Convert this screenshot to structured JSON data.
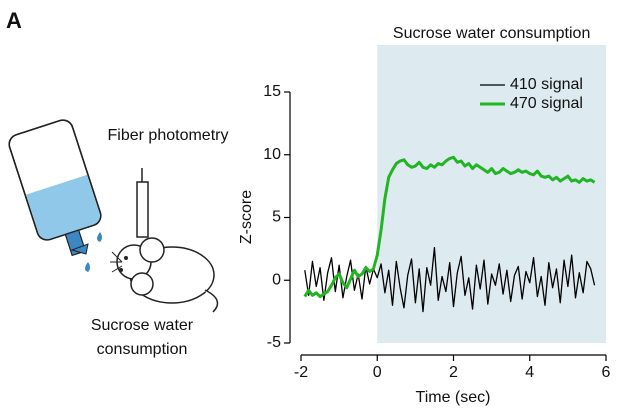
{
  "panel_label": "A",
  "illustration": {
    "fiber_label": "Fiber photometry",
    "caption_lines": [
      "Sucrose water",
      "consumption"
    ]
  },
  "chart_data": {
    "type": "line",
    "x_label": "Time (sec)",
    "y_label": "Z-score",
    "xlim": [
      -2,
      6
    ],
    "xticks": [
      -2,
      0,
      2,
      4,
      6
    ],
    "ylim": [
      -5,
      15
    ],
    "yticks": [
      -5,
      0,
      5,
      10,
      15
    ],
    "legend": "upper right",
    "shade": {
      "from": 0,
      "to": 6,
      "color": "#ddebf1",
      "label": "Sucrose water consumption"
    },
    "x": [
      -1.9,
      -1.8,
      -1.7,
      -1.6,
      -1.5,
      -1.4,
      -1.3,
      -1.2,
      -1.1,
      -1.0,
      -0.9,
      -0.8,
      -0.7,
      -0.6,
      -0.5,
      -0.4,
      -0.3,
      -0.2,
      -0.1,
      0,
      0.1,
      0.2,
      0.3,
      0.4,
      0.5,
      0.6,
      0.7,
      0.8,
      0.9,
      1.0,
      1.1,
      1.2,
      1.3,
      1.4,
      1.5,
      1.6,
      1.7,
      1.8,
      1.9,
      2.0,
      2.1,
      2.2,
      2.3,
      2.4,
      2.5,
      2.6,
      2.7,
      2.8,
      2.9,
      3.0,
      3.1,
      3.2,
      3.3,
      3.4,
      3.5,
      3.6,
      3.7,
      3.8,
      3.9,
      4.0,
      4.1,
      4.2,
      4.3,
      4.4,
      4.5,
      4.6,
      4.7,
      4.8,
      4.9,
      5.0,
      5.1,
      5.2,
      5.3,
      5.4,
      5.5,
      5.6,
      5.7
    ],
    "series": [
      {
        "name": "410 signal",
        "color": "#000000",
        "width": 1.3,
        "values": [
          0.8,
          -1.2,
          1.5,
          -0.5,
          1.0,
          -1.6,
          0.6,
          1.8,
          -0.9,
          1.2,
          -1.4,
          0.3,
          1.6,
          -0.8,
          0.5,
          -1.5,
          1.1,
          -0.3,
          0.9,
          0.2,
          1.3,
          -1.0,
          0.8,
          -2.0,
          1.5,
          -0.6,
          -2.2,
          0.4,
          1.7,
          -1.8,
          0.9,
          -2.5,
          1.0,
          -0.4,
          2.6,
          -1.6,
          0.3,
          -0.9,
          1.4,
          -2.1,
          0.6,
          1.9,
          -1.2,
          0.2,
          -2.3,
          1.2,
          -0.7,
          1.6,
          -1.9,
          0.5,
          -0.4,
          1.3,
          -1.1,
          0.8,
          -1.7,
          0.4,
          1.1,
          -1.5,
          0.7,
          -0.2,
          1.8,
          -1.3,
          0.3,
          -2.0,
          1.4,
          -0.6,
          0.9,
          -1.8,
          1.6,
          -0.5,
          2.0,
          -1.4,
          0.6,
          -1.0,
          1.5,
          0.9,
          -0.4
        ]
      },
      {
        "name": "470 signal",
        "color": "#22b422",
        "width": 3,
        "values": [
          -1.3,
          -0.8,
          -1.2,
          -1.0,
          -1.3,
          -1.1,
          -0.9,
          -0.4,
          0.2,
          0.5,
          -0.2,
          -0.6,
          0.1,
          0.8,
          0.3,
          0.5,
          1.0,
          0.7,
          0.9,
          2.0,
          4.0,
          6.5,
          8.2,
          8.8,
          9.3,
          9.5,
          9.6,
          9.2,
          9.0,
          9.1,
          9.4,
          9.0,
          8.9,
          9.2,
          9.0,
          9.3,
          9.2,
          9.5,
          9.7,
          9.8,
          9.4,
          9.5,
          9.1,
          9.3,
          8.9,
          9.2,
          9.0,
          8.8,
          8.6,
          8.9,
          8.5,
          8.6,
          8.9,
          8.7,
          8.5,
          8.6,
          8.8,
          8.6,
          8.7,
          8.5,
          8.4,
          8.7,
          8.3,
          8.2,
          8.3,
          8.0,
          8.2,
          7.9,
          8.1,
          8.3,
          7.9,
          8.0,
          7.8,
          8.1,
          7.9,
          8.0,
          7.8
        ]
      }
    ]
  }
}
